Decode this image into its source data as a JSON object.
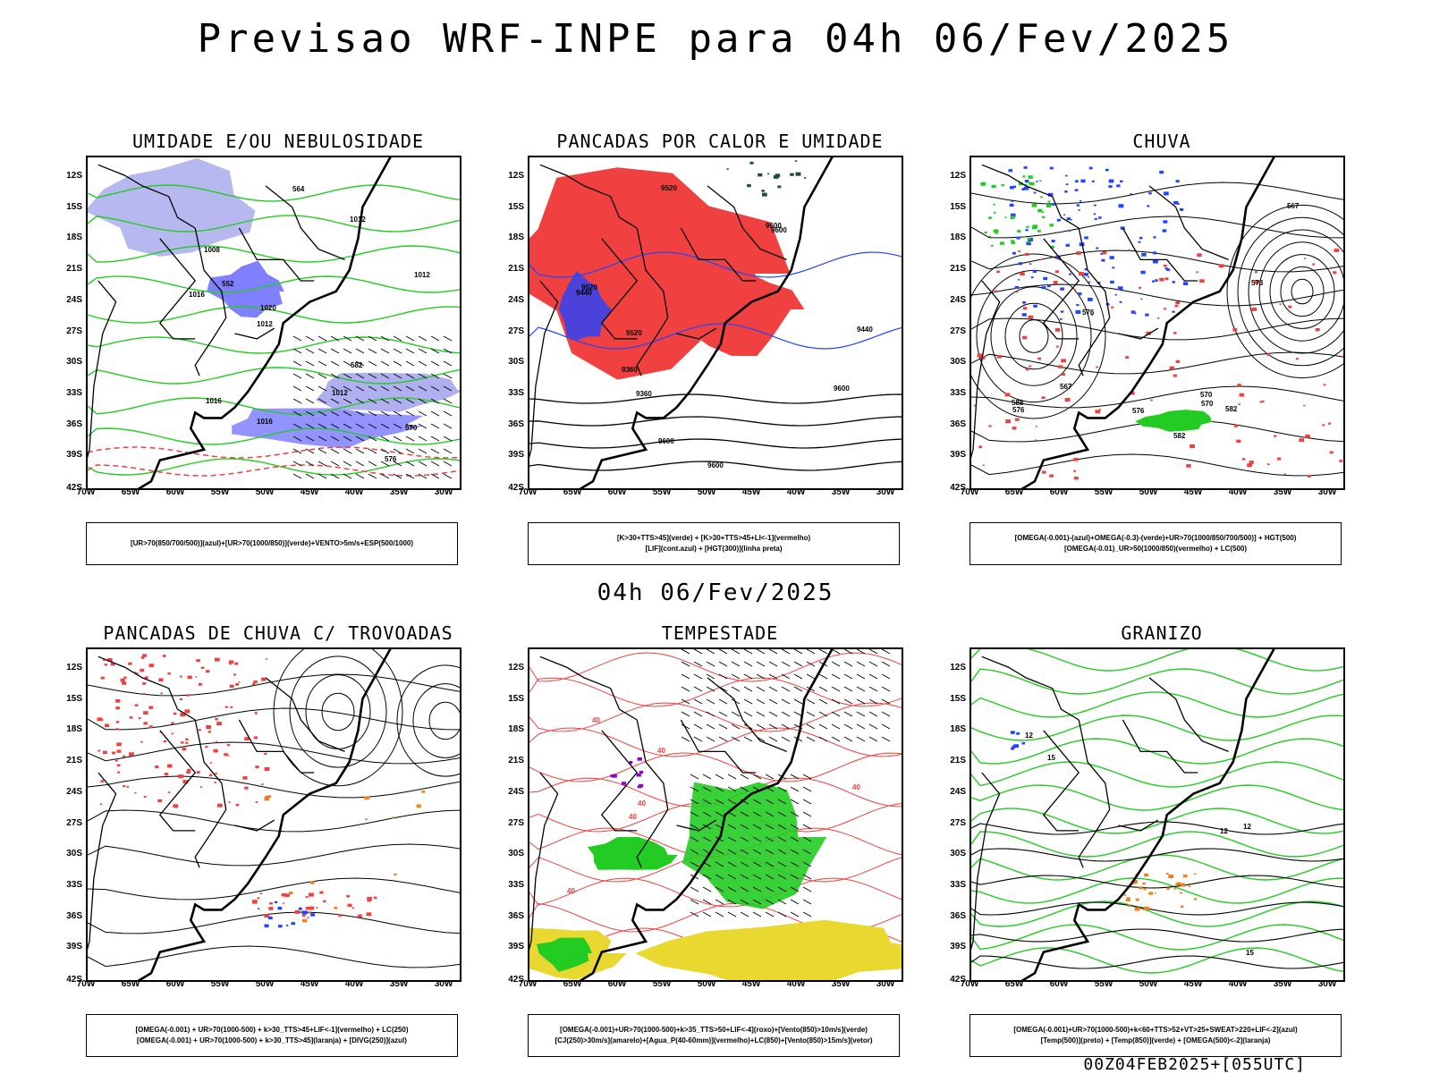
{
  "header": {
    "main_title": "Previsao WRF-INPE  para 04h 06/Fev/2025",
    "mid_title": "04h 06/Fev/2025",
    "run_label": "00Z04FEB2025+[055UTC]"
  },
  "axes": {
    "lat_labels": [
      "12S",
      "15S",
      "18S",
      "21S",
      "24S",
      "27S",
      "30S",
      "33S",
      "36S",
      "39S",
      "42S"
    ],
    "lon_labels": [
      "70W",
      "65W",
      "60W",
      "55W",
      "50W",
      "45W",
      "40W",
      "35W",
      "30W"
    ]
  },
  "panels": [
    {
      "title": "UMIDADE E/OU NEBULOSIDADE",
      "legend_lines": [
        "[UR>70(850/700/500)](azul)+[UR>70(1000/850)](verde)+VENTO>5m/s+ESP(500/1000)"
      ],
      "contour_labels": [
        "1012",
        "1012",
        "1016",
        "1020",
        "1008",
        "1012",
        "1016",
        "576",
        "570",
        "582",
        "564",
        "552",
        "1016",
        "1012"
      ]
    },
    {
      "title": "PANCADAS POR CALOR E UMIDADE",
      "legend_lines": [
        "[K>30+TTS>45](verde) + [K>30+TTS>45+LI<-1](vermelho)",
        "[LIF](cont.azul) + [HGT(300)](linha preta)"
      ],
      "contour_labels": [
        "9600",
        "9520",
        "9600",
        "9600",
        "9600",
        "9520",
        "9520",
        "9440",
        "9440",
        "9360",
        "9360",
        "9600"
      ]
    },
    {
      "title": "CHUVA",
      "legend_lines": [
        "[OMEGA(-0.001)-(azul)+OMEGA(-0.3)-(verde)+UR>70(1000/850/700/500)] + HGT(500)",
        "[OMEGA(-0.01)_UR>50(1000/850)(vermelho) + LC(500)"
      ],
      "contour_labels": [
        "582",
        "588",
        "576",
        "582",
        "576",
        "570",
        "567",
        "573",
        "570",
        "567",
        "576"
      ]
    },
    {
      "title": "PANCADAS DE CHUVA C/ TROVOADAS",
      "legend_lines": [
        "[OMEGA(-0.001) + UR>70(1000-500) + k>30_TTS>45+LIF<-1](vermelho) + LC(250)",
        "[OMEGA(-0.001) + UR>70(1000-500) + k>30_TTS>45](laranja) + [DIVG(250)](azul)"
      ],
      "contour_labels": []
    },
    {
      "title": "TEMPESTADE",
      "legend_lines": [
        "[OMEGA(-0.001)+UR>70(1000-500)+k>35_TTS>50+LIF<-4](roxo)+[Vento(850)>10m/s](verde)",
        "[CJ(250)>30m/s](amarelo)+[Agua_P(40-60mm)](vermelho)+LC(850)+[Vento(850)>15m/s](vetor)"
      ],
      "contour_labels": [
        "40",
        "40",
        "40",
        "40",
        "40",
        "40"
      ]
    },
    {
      "title": "GRANIZO",
      "legend_lines": [
        "[OMEGA(-0.001)+UR>70(1000-500)+k<60+TTS>52+VT>25+SWEAT>220+LIF<-2](azul)",
        "[Temp(500)](preto) + [Temp(850)](verde) + [OMEGA(500)<-2](laranja)"
      ],
      "contour_labels": [
        "12",
        "12",
        "15",
        "12",
        "15"
      ]
    }
  ],
  "colors": {
    "blue_fill": "#8080ff",
    "light_blue": "#b0b0f0",
    "green": "#22cc22",
    "red": "#f04040",
    "orange": "#f08020",
    "yellow": "#e8d830",
    "purple": "#9900cc",
    "dark_teal": "#1e4a44",
    "blue_line": "#2244ff"
  }
}
